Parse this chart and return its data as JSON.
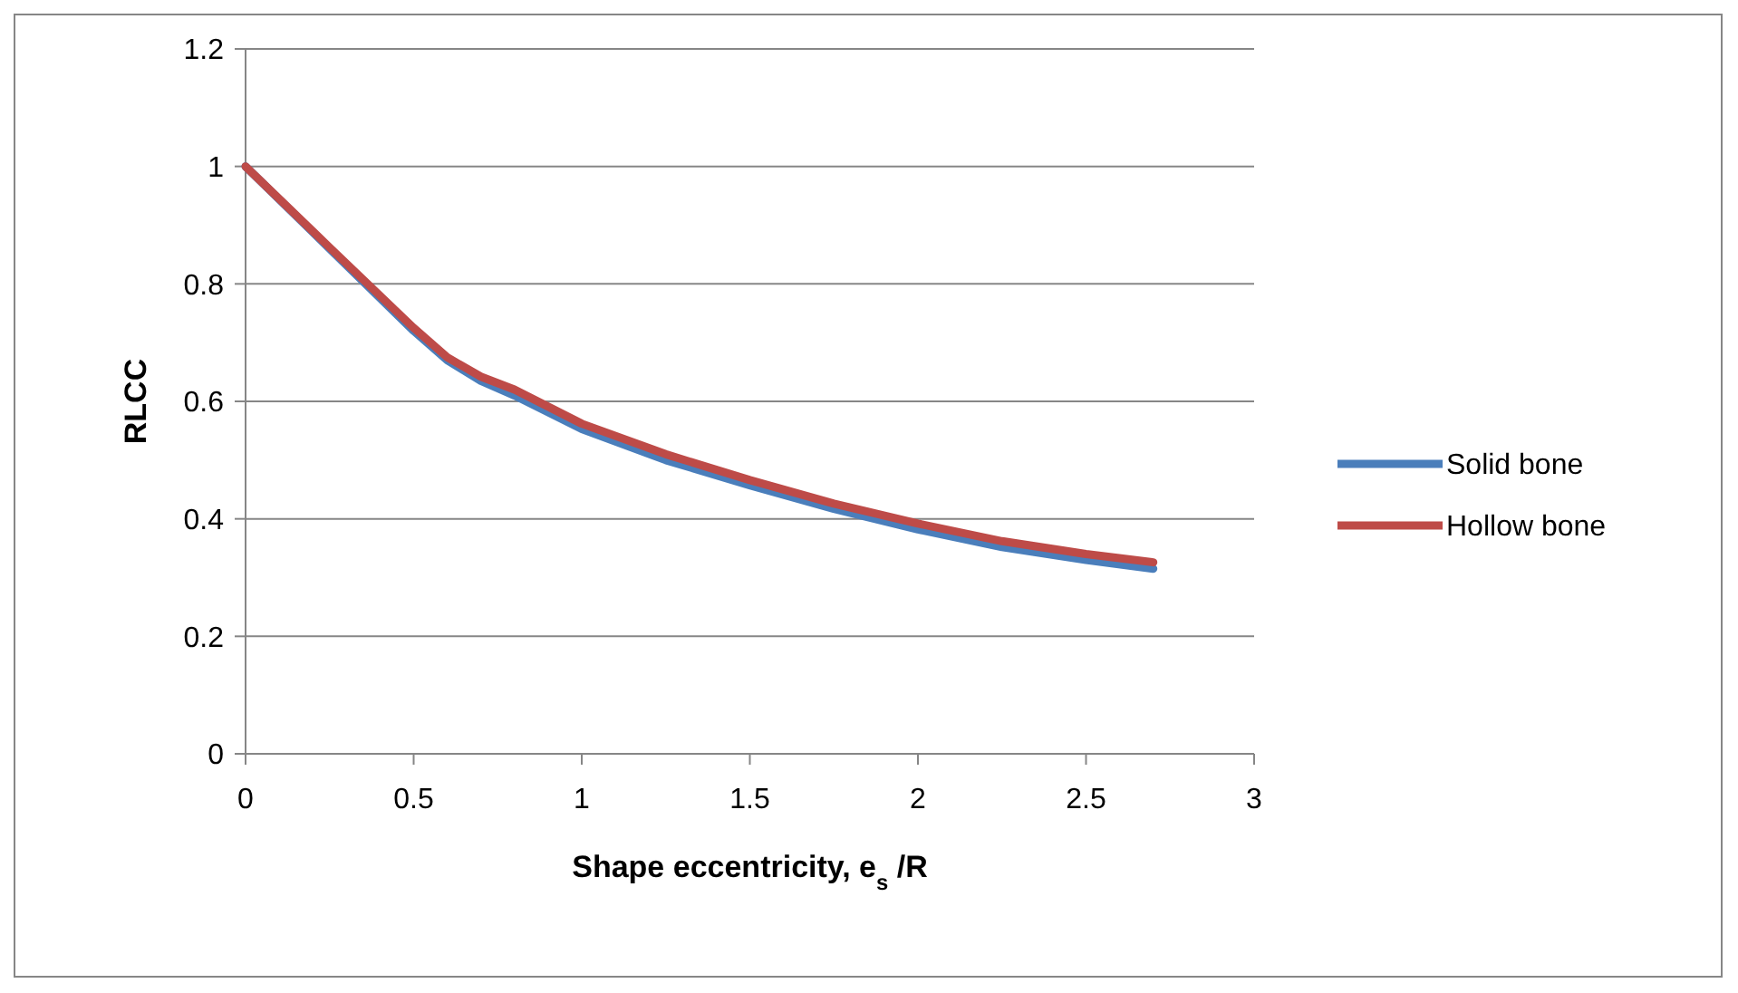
{
  "chart_data": {
    "type": "line",
    "xlabel": "Shape eccentricity, e$_{s}$ /R",
    "ylabel": "RLCC",
    "xlim": [
      0,
      3
    ],
    "xticks": [
      0,
      0.5,
      1,
      1.5,
      2,
      2.5,
      3
    ],
    "ylim": [
      0,
      1.2
    ],
    "yticks": [
      0,
      0.2,
      0.4,
      0.6,
      0.8,
      1,
      1.2
    ],
    "grid": "y",
    "legend": "right",
    "marker": "none",
    "line_style": "solid",
    "x": [
      0,
      0.25,
      0.5,
      0.6,
      0.7,
      0.8,
      1,
      1.25,
      1.5,
      1.75,
      2,
      2.25,
      2.5,
      2.7
    ],
    "series": [
      {
        "name": "Solid bone",
        "color": "#4a7ebb",
        "values": [
          1,
          0.86,
          0.72,
          0.67,
          0.635,
          0.61,
          0.553,
          0.5,
          0.457,
          0.417,
          0.382,
          0.352,
          0.33,
          0.315
        ]
      },
      {
        "name": "Hollow bone",
        "color": "#be4b48",
        "values": [
          1,
          0.862,
          0.725,
          0.675,
          0.642,
          0.62,
          0.562,
          0.51,
          0.466,
          0.426,
          0.392,
          0.362,
          0.34,
          0.326
        ]
      }
    ]
  }
}
